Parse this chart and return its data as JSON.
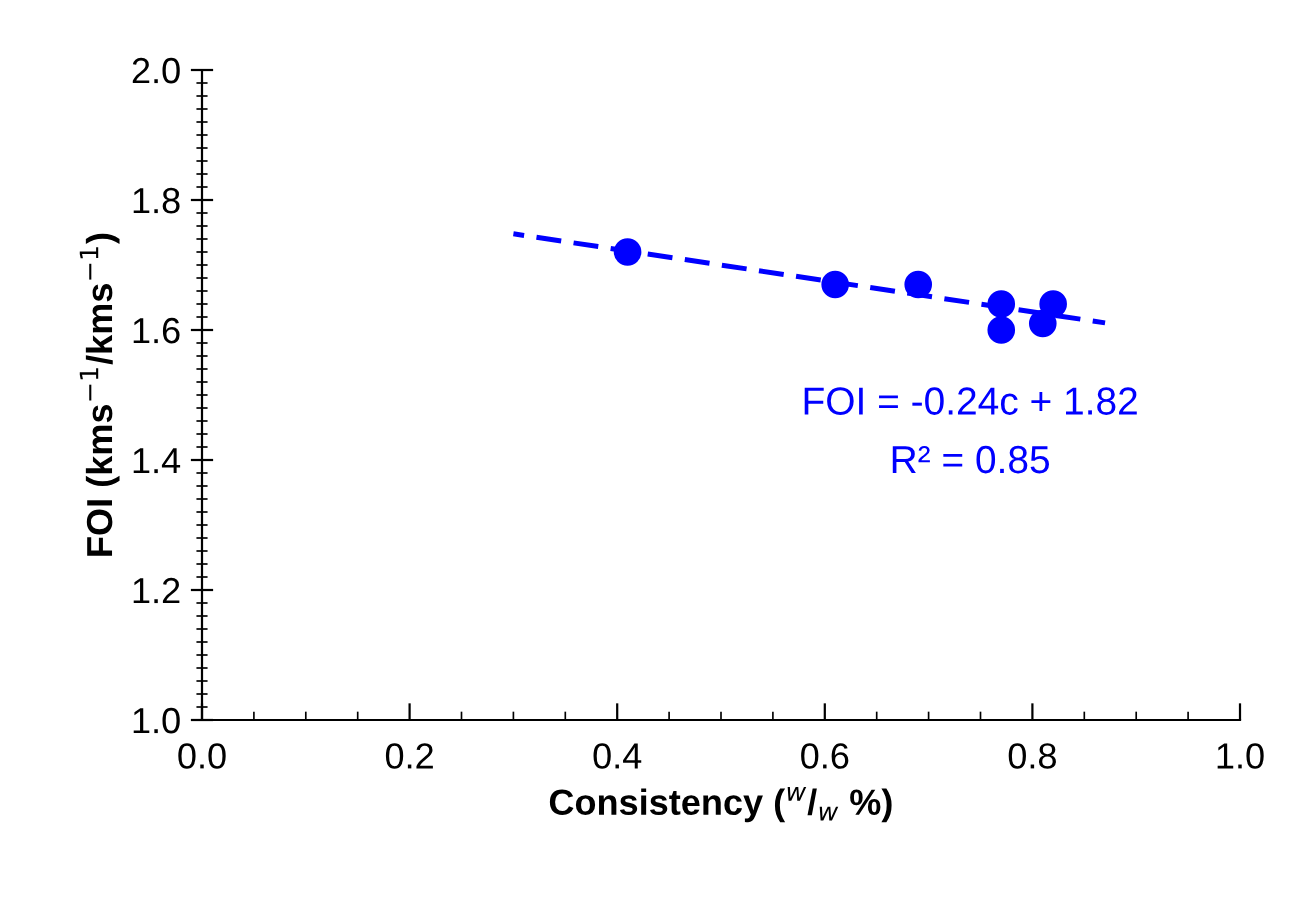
{
  "chart_data": {
    "type": "scatter",
    "xlabel": "Consistency ($^{w}$/$_{w}$ %)",
    "ylabel": "FOI (kms$^{−1}$/kms$^{−1}$)",
    "xlim": [
      0,
      1
    ],
    "ylim": [
      1,
      2
    ],
    "xticks": [
      {
        "value": 0,
        "label": "0.0"
      },
      0.2,
      0.4,
      0.6,
      0.8,
      {
        "value": 1,
        "label": "1.0"
      }
    ],
    "yticks": [
      {
        "value": 1,
        "label": "1.0"
      },
      1.2,
      1.4,
      1.6,
      1.8,
      {
        "value": 2,
        "label": "2.0"
      }
    ],
    "grid": false,
    "legend": false,
    "series": [
      {
        "color": "#0000ff",
        "marker": "circle",
        "x": [
          0.41,
          0.61,
          0.69,
          0.77,
          0.77,
          0.81,
          0.82
        ],
        "values": [
          1.72,
          1.67,
          1.67,
          1.64,
          1.6,
          1.61,
          1.64
        ]
      },
      {
        "type": "line",
        "color": "#0000ff",
        "line_style": "dashed",
        "marker": "none",
        "x": [
          0.3,
          0.87
        ],
        "values": [
          1.748,
          1.611
        ]
      }
    ],
    "annotations": [
      "FOI = -0.24c + 1.82",
      "R² = 0.85"
    ]
  }
}
